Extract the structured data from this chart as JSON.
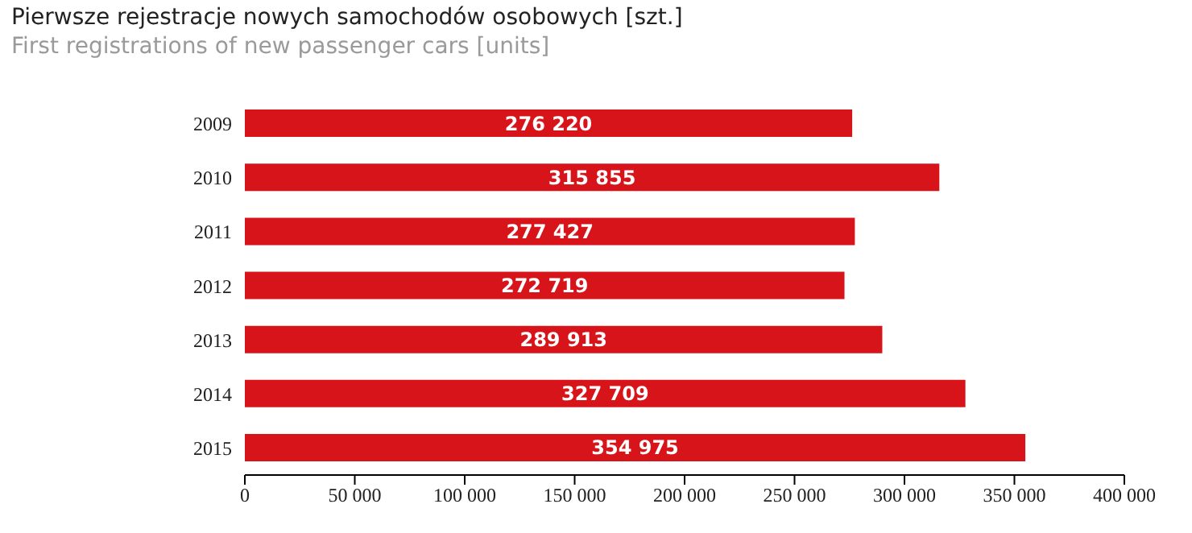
{
  "chart_data": {
    "type": "bar",
    "orientation": "horizontal",
    "title": "Pierwsze rejestracje nowych samochodów osobowych [szt.]",
    "subtitle": "First registrations of new passenger cars [units]",
    "categories": [
      "2009",
      "2010",
      "2011",
      "2012",
      "2013",
      "2014",
      "2015"
    ],
    "values": [
      276220,
      315855,
      277427,
      272719,
      289913,
      327709,
      354975
    ],
    "value_labels": [
      "276 220",
      "315 855",
      "277 427",
      "272 719",
      "289 913",
      "327 709",
      "354 975"
    ],
    "color": "#d7141a",
    "xlim": [
      0,
      400000
    ],
    "xticks": [
      0,
      {
        "value": 50000,
        "label": "50 000"
      },
      {
        "value": 100000,
        "label": "100 000"
      },
      {
        "value": 150000,
        "label": "150 000"
      },
      {
        "value": 200000,
        "label": "200 000"
      },
      {
        "value": 250000,
        "label": "250 000"
      },
      {
        "value": 300000,
        "label": "300 000"
      },
      {
        "value": 350000,
        "label": "350 000"
      },
      {
        "value": 400000,
        "label": "400 000"
      }
    ],
    "grid": false,
    "legend": false
  }
}
